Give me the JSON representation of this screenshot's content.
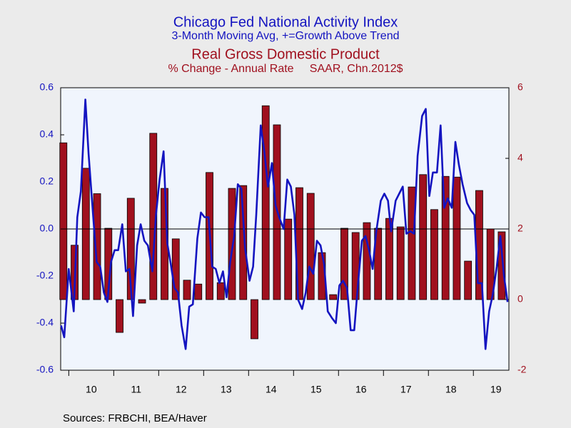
{
  "chart_data": {
    "type": "combo",
    "series": [
      {
        "type": "line",
        "name": "Chicago Fed National Activity Index",
        "subtitle": "3-Month Moving Avg, +=Growth Above Trend",
        "color": "#1414c0",
        "axis": "y",
        "x": [
          2009.83,
          2009.9,
          2010.0,
          2010.11,
          2010.19,
          2010.27,
          2010.37,
          2010.44,
          2010.54,
          2010.62,
          2010.7,
          2010.78,
          2010.86,
          2010.94,
          2011.02,
          2011.1,
          2011.19,
          2011.27,
          2011.35,
          2011.43,
          2011.52,
          2011.6,
          2011.68,
          2011.76,
          2011.86,
          2011.94,
          2012.02,
          2012.11,
          2012.19,
          2012.27,
          2012.35,
          2012.43,
          2012.51,
          2012.6,
          2012.68,
          2012.76,
          2012.86,
          2012.94,
          2013.02,
          2013.11,
          2013.19,
          2013.27,
          2013.35,
          2013.43,
          2013.51,
          2013.59,
          2013.68,
          2013.76,
          2013.84,
          2013.92,
          2014.02,
          2014.1,
          2014.17,
          2014.27,
          2014.35,
          2014.43,
          2014.52,
          2014.6,
          2014.68,
          2014.78,
          2014.86,
          2014.94,
          2015.02,
          2015.1,
          2015.19,
          2015.27,
          2015.35,
          2015.44,
          2015.52,
          2015.6,
          2015.68,
          2015.76,
          2015.86,
          2015.94,
          2016.02,
          2016.1,
          2016.19,
          2016.27,
          2016.35,
          2016.43,
          2016.52,
          2016.6,
          2016.68,
          2016.76,
          2016.84,
          2016.94,
          2017.02,
          2017.1,
          2017.17,
          2017.27,
          2017.35,
          2017.43,
          2017.51,
          2017.6,
          2017.68,
          2017.76,
          2017.86,
          2017.94,
          2018.02,
          2018.1,
          2018.19,
          2018.27,
          2018.35,
          2018.43,
          2018.52,
          2018.6,
          2018.68,
          2018.76,
          2018.86,
          2018.94,
          2019.02,
          2019.1,
          2019.19,
          2019.27,
          2019.35,
          2019.43,
          2019.52,
          2019.6,
          2019.68,
          2019.76
        ],
        "values": [
          -0.41,
          -0.46,
          -0.17,
          -0.35,
          0.05,
          0.16,
          0.55,
          0.32,
          0.06,
          -0.14,
          -0.16,
          -0.27,
          -0.31,
          -0.14,
          -0.09,
          -0.09,
          0.02,
          -0.18,
          -0.17,
          -0.37,
          -0.07,
          0.02,
          -0.05,
          -0.07,
          -0.18,
          0.06,
          0.21,
          0.33,
          -0.06,
          -0.15,
          -0.25,
          -0.27,
          -0.41,
          -0.51,
          -0.33,
          -0.32,
          -0.04,
          0.07,
          0.05,
          0.05,
          -0.16,
          -0.17,
          -0.23,
          -0.18,
          -0.29,
          -0.14,
          -0.03,
          0.19,
          0.17,
          -0.08,
          -0.22,
          -0.16,
          0.06,
          0.44,
          0.33,
          0.18,
          0.28,
          0.1,
          0.05,
          0.0,
          0.21,
          0.18,
          0.06,
          -0.3,
          -0.34,
          -0.27,
          -0.16,
          -0.19,
          -0.05,
          -0.07,
          -0.15,
          -0.35,
          -0.38,
          -0.4,
          -0.24,
          -0.22,
          -0.25,
          -0.43,
          -0.43,
          -0.24,
          -0.05,
          -0.03,
          -0.09,
          -0.17,
          -0.01,
          0.12,
          0.15,
          0.12,
          -0.01,
          0.12,
          0.15,
          0.18,
          -0.02,
          -0.01,
          -0.02,
          0.31,
          0.48,
          0.51,
          0.14,
          0.24,
          0.24,
          0.44,
          0.09,
          0.13,
          0.09,
          0.37,
          0.27,
          0.19,
          0.11,
          0.08,
          0.06,
          -0.23,
          -0.23,
          -0.51,
          -0.35,
          -0.28,
          -0.16,
          -0.03,
          -0.2,
          -0.31
        ]
      },
      {
        "type": "bar",
        "name": "Real Gross Domestic Product",
        "subtitle": "% Change - Annual Rate     SAAR, Chn.2012$",
        "color": "#a0101e",
        "axis": "y2",
        "x": [
          2009.88,
          2010.13,
          2010.38,
          2010.63,
          2010.88,
          2011.13,
          2011.38,
          2011.63,
          2011.88,
          2012.13,
          2012.38,
          2012.63,
          2012.88,
          2013.13,
          2013.38,
          2013.63,
          2013.88,
          2014.13,
          2014.38,
          2014.63,
          2014.88,
          2015.13,
          2015.38,
          2015.63,
          2015.88,
          2016.13,
          2016.38,
          2016.63,
          2016.88,
          2017.13,
          2017.38,
          2017.63,
          2017.88,
          2018.13,
          2018.38,
          2018.63,
          2018.88,
          2019.13,
          2019.38,
          2019.63
        ],
        "values": [
          4.44,
          1.54,
          3.72,
          3.0,
          2.02,
          -0.93,
          2.87,
          -0.1,
          4.71,
          3.15,
          1.72,
          0.55,
          0.44,
          3.6,
          0.48,
          3.15,
          3.23,
          -1.11,
          5.49,
          4.95,
          2.28,
          3.17,
          3.01,
          1.33,
          0.14,
          2.02,
          1.9,
          2.18,
          2.02,
          2.3,
          2.06,
          3.19,
          3.54,
          2.55,
          3.49,
          3.47,
          1.09,
          3.09,
          2.0,
          1.92
        ]
      }
    ],
    "xlim": [
      2009.82,
      2019.79
    ],
    "xticks": [
      2010,
      2011,
      2012,
      2013,
      2014,
      2015,
      2016,
      2017,
      2018,
      2019
    ],
    "xlabels": [
      {
        "value": 2010.5,
        "label": "10"
      },
      {
        "value": 2011.5,
        "label": "11"
      },
      {
        "value": 2012.5,
        "label": "12"
      },
      {
        "value": 2013.5,
        "label": "13"
      },
      {
        "value": 2014.5,
        "label": "14"
      },
      {
        "value": 2015.5,
        "label": "15"
      },
      {
        "value": 2016.5,
        "label": "16"
      },
      {
        "value": 2017.5,
        "label": "17"
      },
      {
        "value": 2018.5,
        "label": "18"
      },
      {
        "value": 2019.5,
        "label": "19"
      }
    ],
    "ylim": [
      -0.6,
      0.6
    ],
    "yticks": [
      -0.6,
      -0.4,
      -0.2,
      {
        "value": 0,
        "label": "0.0"
      },
      0.2,
      0.4,
      0.6
    ],
    "y2lim": [
      -2,
      6
    ],
    "y2ticks": [
      -2,
      0,
      2,
      4,
      6
    ],
    "zero_line": true,
    "source": "Sources:  FRBCHI, BEA/Haver"
  }
}
